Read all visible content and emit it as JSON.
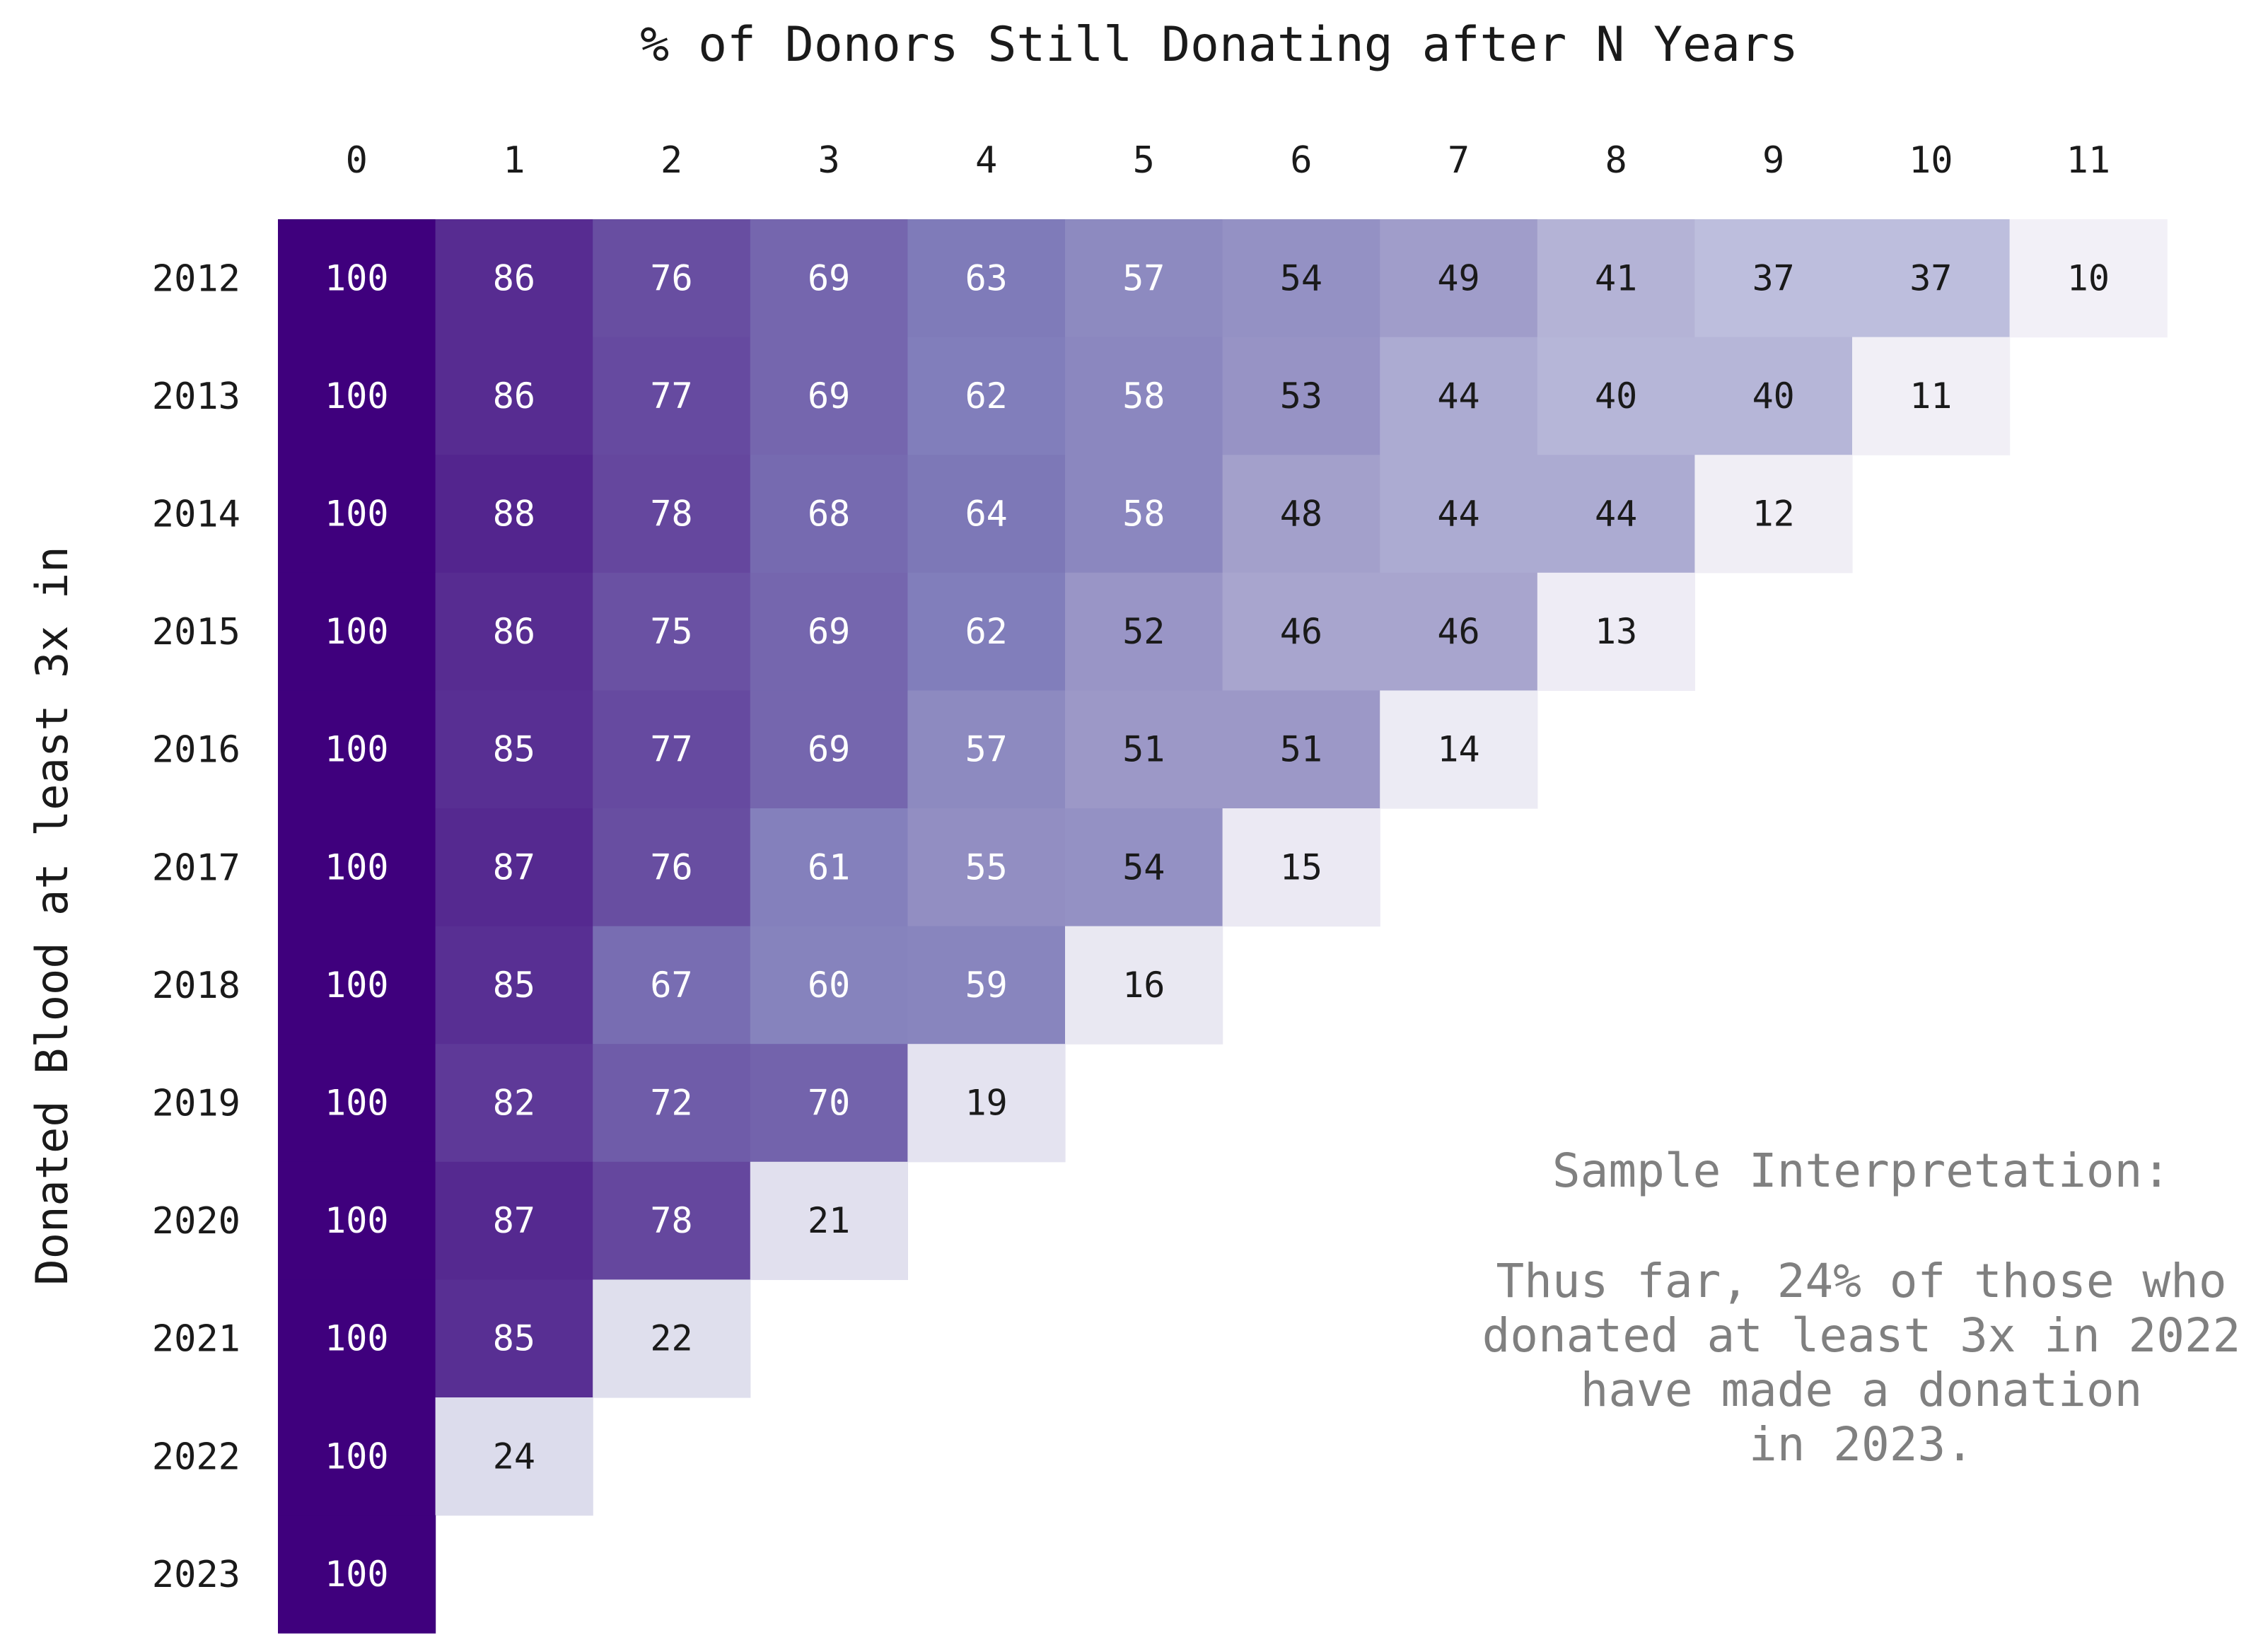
{
  "chart_data": {
    "type": "heatmap",
    "title": "% of Donors Still Donating after N Years",
    "xlabel": "",
    "ylabel": "Donated Blood at least 3x in",
    "x_ticks": [
      "0",
      "1",
      "2",
      "3",
      "4",
      "5",
      "6",
      "7",
      "8",
      "9",
      "10",
      "11"
    ],
    "y_ticks": [
      "2012",
      "2013",
      "2014",
      "2015",
      "2016",
      "2017",
      "2018",
      "2019",
      "2020",
      "2021",
      "2022",
      "2023"
    ],
    "values": [
      [
        100,
        86,
        76,
        69,
        63,
        57,
        54,
        49,
        41,
        37,
        37,
        10
      ],
      [
        100,
        86,
        77,
        69,
        62,
        58,
        53,
        44,
        40,
        40,
        11
      ],
      [
        100,
        88,
        78,
        68,
        64,
        58,
        48,
        44,
        44,
        12
      ],
      [
        100,
        86,
        75,
        69,
        62,
        52,
        46,
        46,
        13
      ],
      [
        100,
        85,
        77,
        69,
        57,
        51,
        51,
        14
      ],
      [
        100,
        87,
        76,
        61,
        55,
        54,
        15
      ],
      [
        100,
        85,
        67,
        60,
        59,
        16
      ],
      [
        100,
        82,
        72,
        70,
        19
      ],
      [
        100,
        87,
        78,
        21
      ],
      [
        100,
        85,
        22
      ],
      [
        100,
        24
      ],
      [
        100
      ]
    ],
    "colormap": "Purples",
    "color_range": [
      0,
      100
    ],
    "cell_label_light_color": "#ffffff",
    "cell_label_dark_color": "#1a1a1a",
    "grid": false,
    "legend": "none",
    "annotation": {
      "title": "Sample Interpretation:",
      "lines": [
        "Thus far, 24% of those who",
        "donated at least 3x in 2022",
        "have made a donation",
        "in 2023."
      ]
    }
  }
}
